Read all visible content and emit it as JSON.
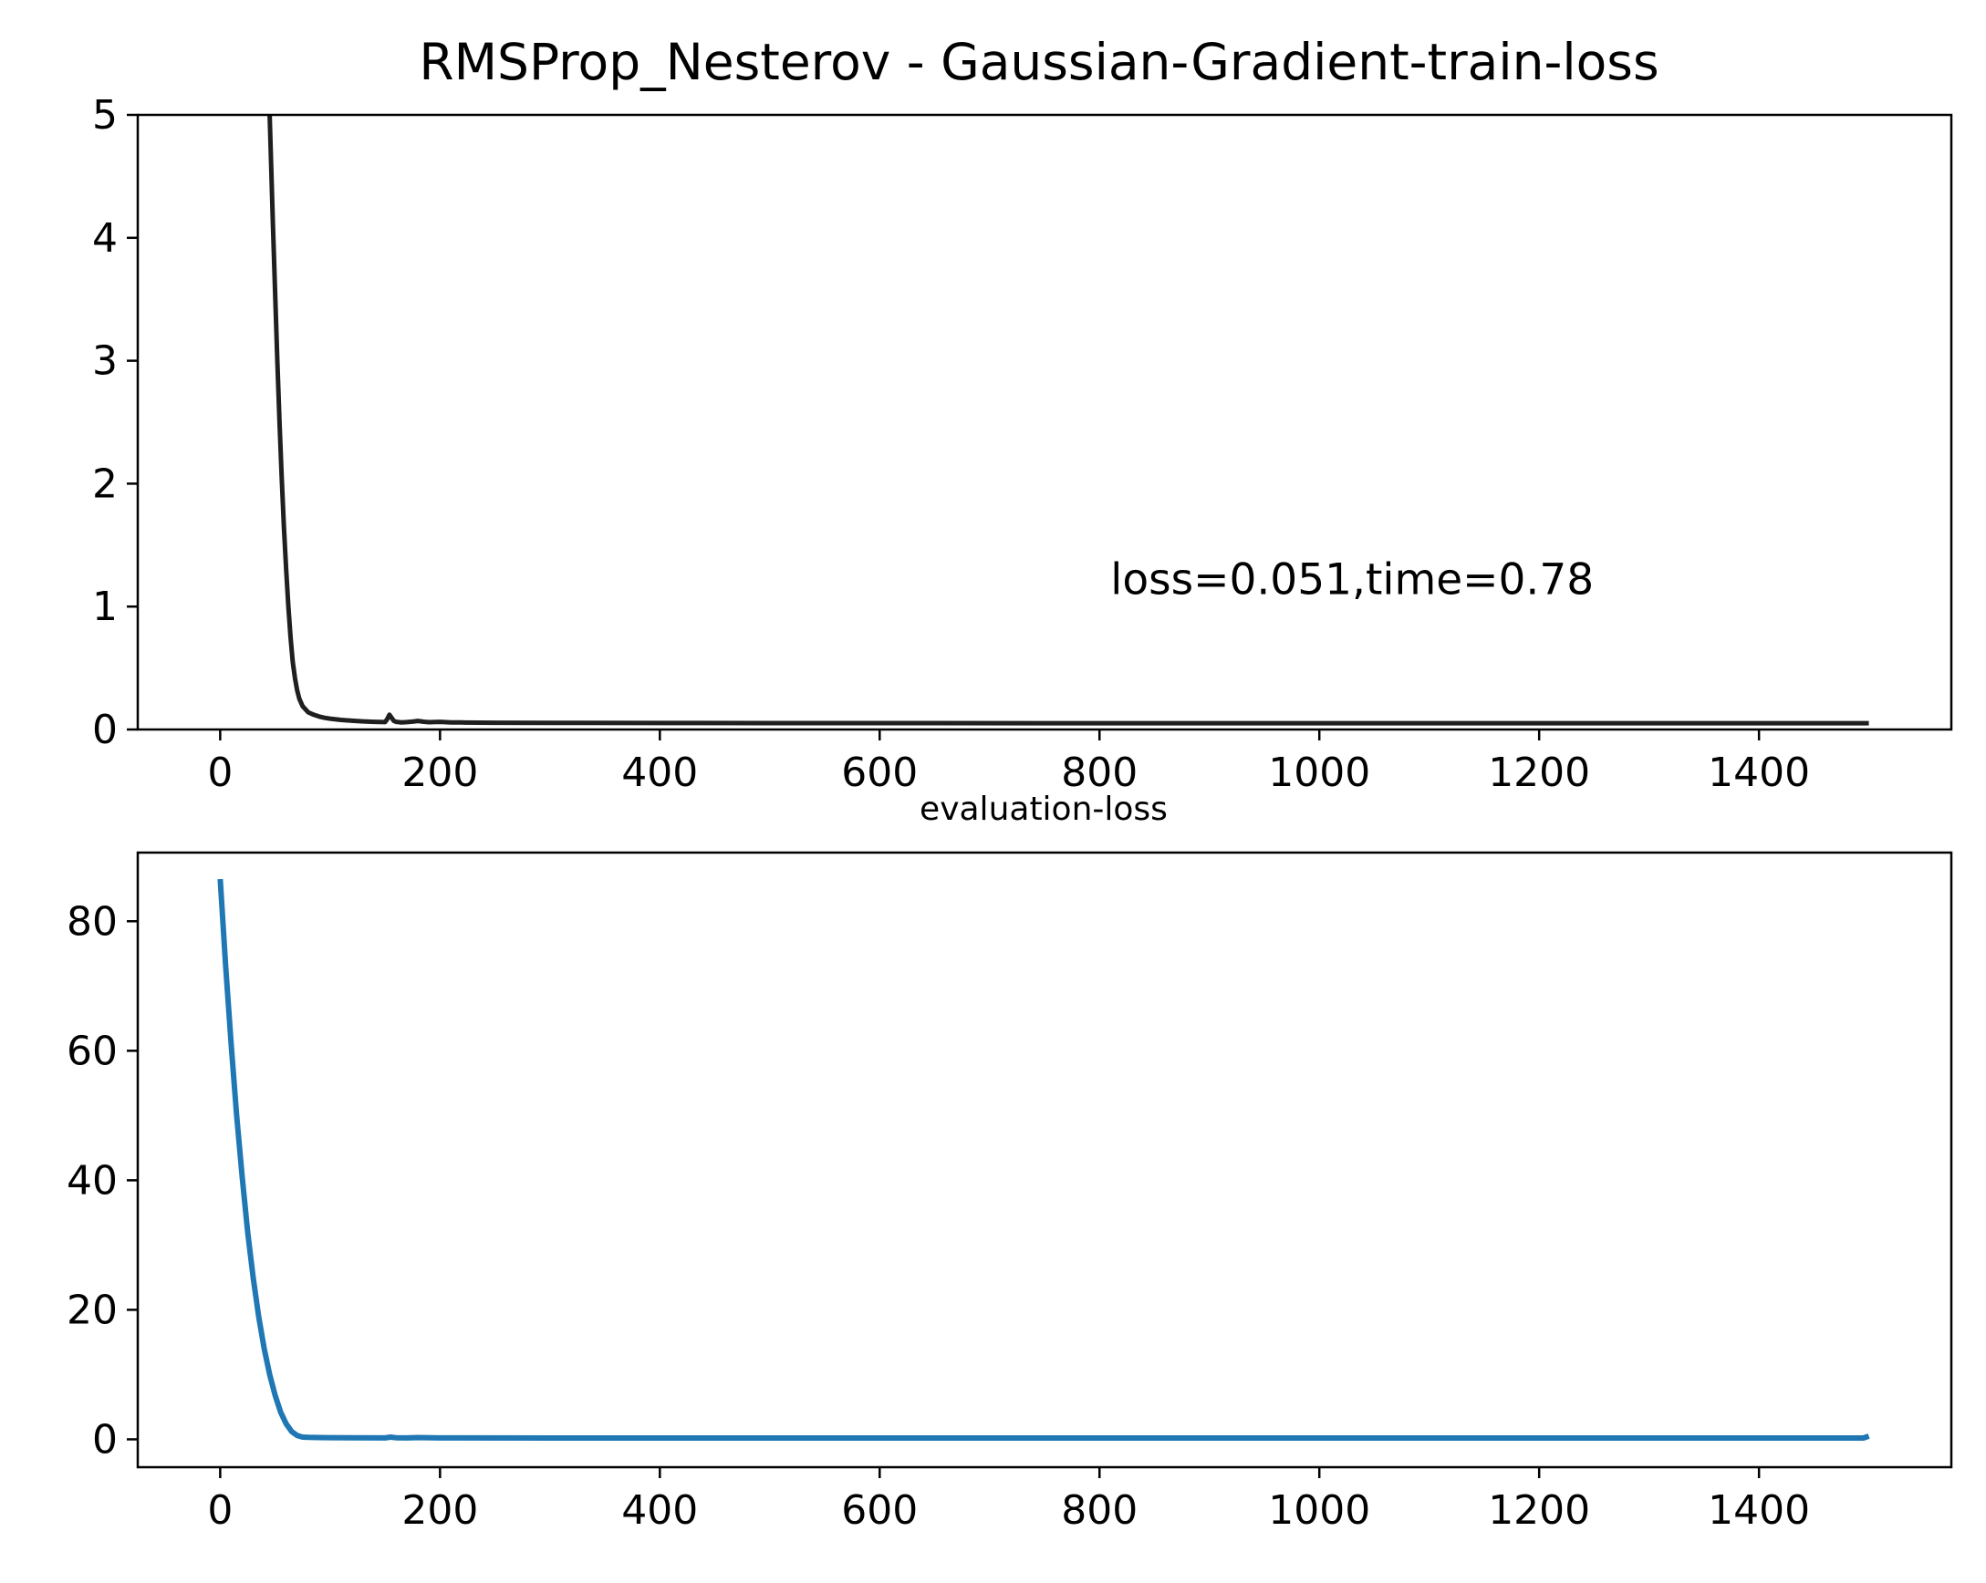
{
  "chart_data": [
    {
      "type": "line",
      "title": "RMSProp_Nesterov - Gaussian-Gradient-train-loss",
      "xlabel": "",
      "ylabel": "",
      "xlim": [
        -75,
        1575
      ],
      "ylim": [
        0,
        5
      ],
      "xticks": [
        0,
        200,
        400,
        600,
        800,
        1000,
        1200,
        1400
      ],
      "yticks": [
        0,
        1,
        2,
        3,
        4,
        5
      ],
      "grid": false,
      "annotation": {
        "text": "loss=0.051,time=0.78",
        "x": 810,
        "y": 1.1
      },
      "series": [
        {
          "color": "#1f1f1f",
          "x": [
            45,
            46,
            48,
            50,
            52,
            54,
            56,
            58,
            60,
            62,
            64,
            66,
            68,
            70,
            72,
            75,
            80,
            85,
            90,
            95,
            100,
            110,
            120,
            130,
            140,
            150,
            152,
            154,
            156,
            158,
            160,
            165,
            170,
            175,
            180,
            185,
            190,
            200,
            210,
            220,
            250,
            300,
            400,
            500,
            600,
            800,
            1000,
            1200,
            1400,
            1500
          ],
          "y": [
            5.0,
            4.7,
            4.1,
            3.55,
            3.0,
            2.5,
            2.05,
            1.65,
            1.3,
            1.0,
            0.75,
            0.55,
            0.42,
            0.32,
            0.25,
            0.19,
            0.14,
            0.12,
            0.105,
            0.095,
            0.088,
            0.078,
            0.071,
            0.066,
            0.062,
            0.06,
            0.085,
            0.12,
            0.095,
            0.07,
            0.062,
            0.058,
            0.06,
            0.064,
            0.07,
            0.063,
            0.059,
            0.062,
            0.058,
            0.057,
            0.055,
            0.054,
            0.053,
            0.052,
            0.052,
            0.051,
            0.051,
            0.051,
            0.051,
            0.051
          ]
        }
      ]
    },
    {
      "type": "line",
      "title": "evaluation-loss",
      "xlabel": "",
      "ylabel": "",
      "xlim": [
        -75,
        1575
      ],
      "ylim": [
        -4.3,
        90.6
      ],
      "xticks": [
        0,
        200,
        400,
        600,
        800,
        1000,
        1200,
        1400
      ],
      "yticks": [
        0,
        20,
        40,
        60,
        80
      ],
      "grid": false,
      "series": [
        {
          "color": "#1f77b4",
          "x": [
            0,
            5,
            10,
            15,
            20,
            25,
            30,
            35,
            40,
            45,
            50,
            55,
            60,
            65,
            70,
            75,
            80,
            90,
            100,
            120,
            150,
            155,
            160,
            170,
            180,
            200,
            300,
            400,
            600,
            800,
            1000,
            1200,
            1400,
            1495,
            1500
          ],
          "y": [
            86.5,
            73,
            61,
            50,
            40.5,
            32,
            25,
            19,
            14,
            10,
            6.8,
            4.2,
            2.4,
            1.2,
            0.6,
            0.35,
            0.3,
            0.28,
            0.26,
            0.24,
            0.22,
            0.35,
            0.25,
            0.22,
            0.28,
            0.22,
            0.2,
            0.2,
            0.2,
            0.2,
            0.2,
            0.2,
            0.2,
            0.2,
            0.5
          ]
        }
      ]
    }
  ]
}
